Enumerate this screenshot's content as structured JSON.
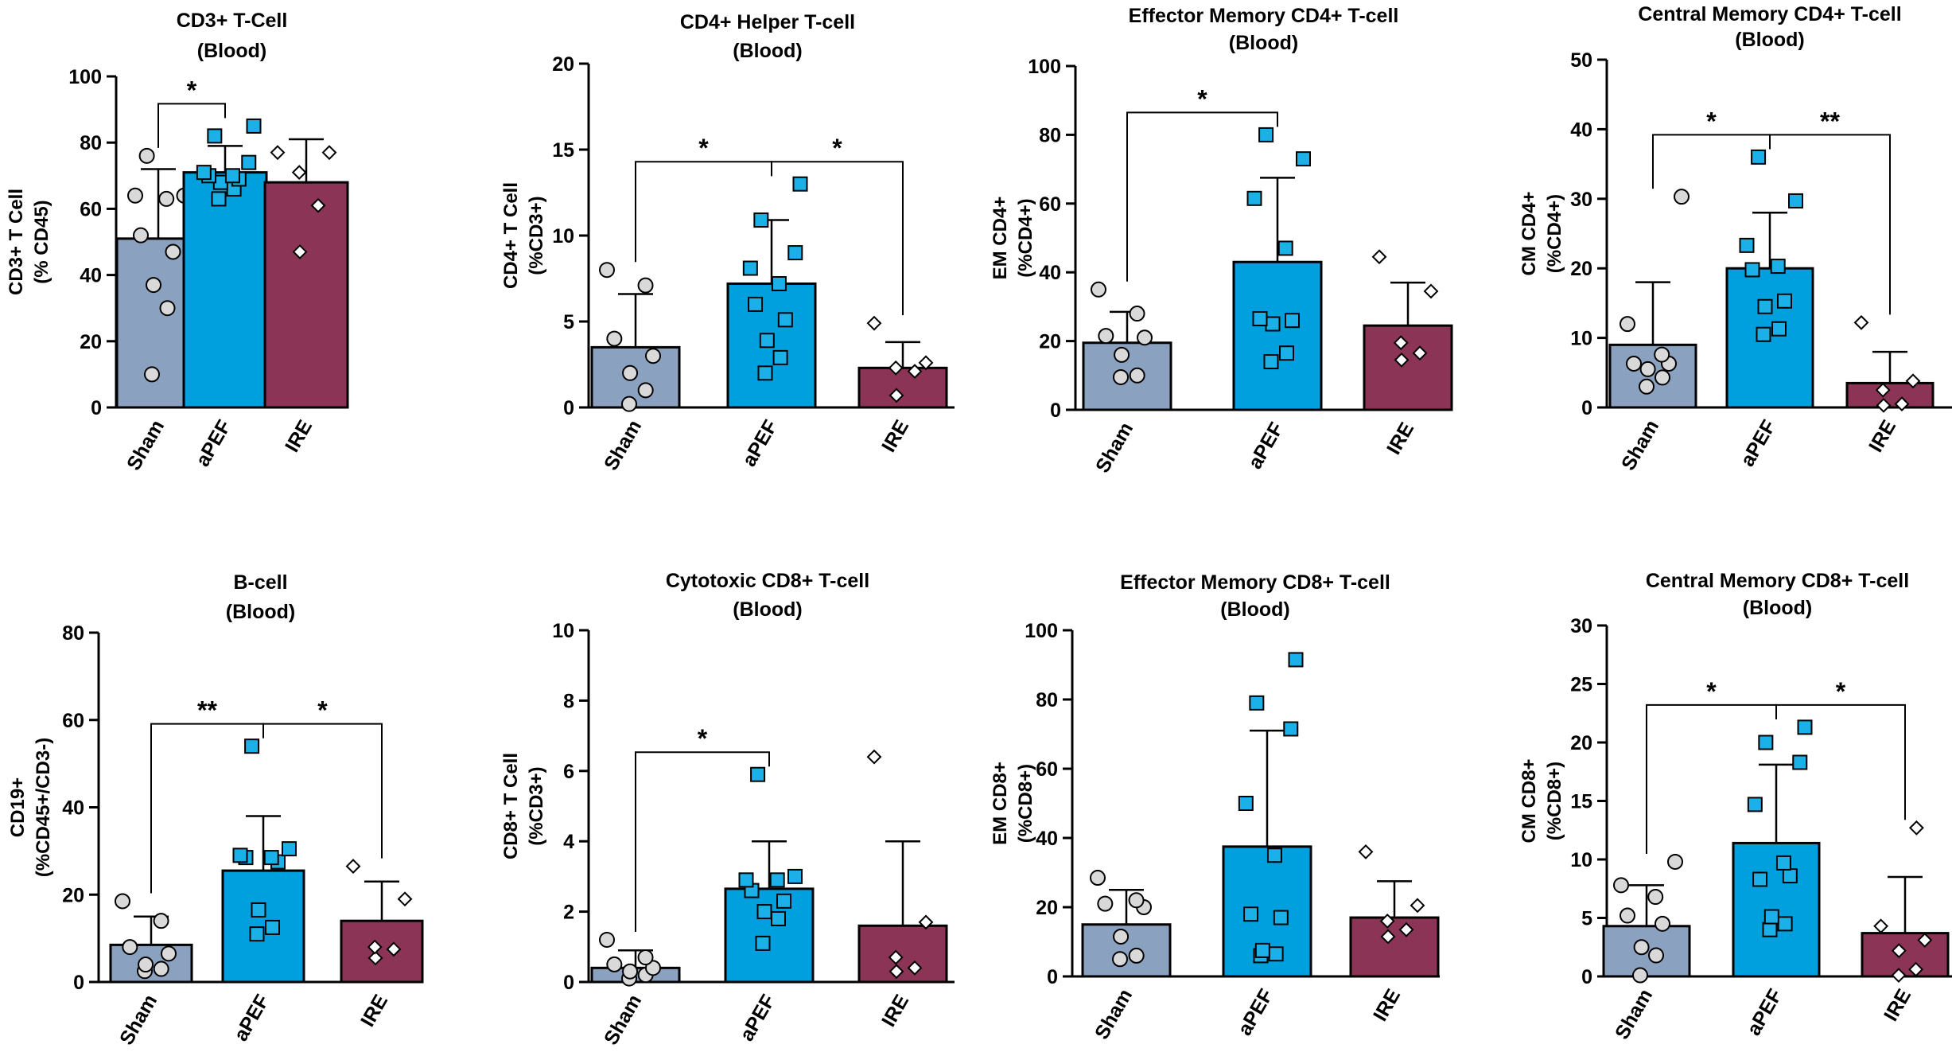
{
  "chart_data": [
    {
      "type": "bar",
      "title": "CD3+ T-Cell",
      "subtitle": "(Blood)",
      "ylabel_lines": [
        "CD3+ T Cell",
        "(% CD45)"
      ],
      "categories": [
        "Sham",
        "aPEF",
        "IRE"
      ],
      "ylim": [
        0,
        100
      ],
      "yticks": [
        0,
        20,
        40,
        60,
        80,
        100
      ],
      "series": [
        {
          "name": "Sham",
          "mean": 51,
          "error_upper": 72,
          "points": [
            10,
            30,
            37,
            47,
            52,
            63,
            64,
            64,
            76
          ]
        },
        {
          "name": "aPEF",
          "mean": 71,
          "error_upper": 79,
          "points": [
            63,
            66,
            68,
            69,
            70,
            70,
            71,
            74,
            82,
            85
          ]
        },
        {
          "name": "IRE",
          "mean": 68,
          "error_upper": 81,
          "points": [
            47,
            61,
            71,
            77,
            77
          ]
        }
      ],
      "significance": [
        {
          "from": 0,
          "to": 1,
          "label": "*"
        }
      ]
    },
    {
      "type": "bar",
      "title": "CD4+ Helper T-cell",
      "subtitle": "(Blood)",
      "ylabel_lines": [
        "CD4+ T Cell",
        "(%CD3+)"
      ],
      "categories": [
        "Sham",
        "aPEF",
        "IRE"
      ],
      "ylim": [
        0,
        20
      ],
      "yticks": [
        0,
        5,
        10,
        15,
        20
      ],
      "series": [
        {
          "name": "Sham",
          "mean": 3.5,
          "error_upper": 6.6,
          "points": [
            0.2,
            1.0,
            2.0,
            3.0,
            4.0,
            7.1,
            8.0
          ]
        },
        {
          "name": "aPEF",
          "mean": 7.2,
          "error_upper": 10.9,
          "points": [
            2.0,
            2.9,
            3.9,
            5.1,
            6.0,
            7.2,
            8.1,
            9.0,
            10.9,
            13.0
          ]
        },
        {
          "name": "IRE",
          "mean": 2.3,
          "error_upper": 3.8,
          "points": [
            0.7,
            2.1,
            2.3,
            2.6,
            4.9
          ]
        }
      ],
      "significance": [
        {
          "from": 0,
          "to": 1,
          "label": "*"
        },
        {
          "from": 1,
          "to": 2,
          "label": "*"
        }
      ]
    },
    {
      "type": "bar",
      "title": "Effector Memory CD4+ T-cell",
      "subtitle": "(Blood)",
      "ylabel_lines": [
        "EM CD4+",
        "(%CD4+)"
      ],
      "categories": [
        "Sham",
        "aPEF",
        "IRE"
      ],
      "ylim": [
        0,
        100
      ],
      "yticks": [
        0,
        20,
        40,
        60,
        80,
        100
      ],
      "series": [
        {
          "name": "Sham",
          "mean": 19.5,
          "error_upper": 28.5,
          "points": [
            9.5,
            10,
            16,
            21,
            21.5,
            28,
            35
          ]
        },
        {
          "name": "aPEF",
          "mean": 43,
          "error_upper": 67.5,
          "points": [
            14,
            16.5,
            25,
            26,
            26.5,
            47,
            61.5,
            73,
            80
          ]
        },
        {
          "name": "IRE",
          "mean": 24.5,
          "error_upper": 37,
          "points": [
            14.5,
            16.5,
            19.5,
            34.5,
            44.5
          ]
        }
      ],
      "significance": [
        {
          "from": 0,
          "to": 1,
          "label": "*"
        }
      ]
    },
    {
      "type": "bar",
      "title": "Central Memory CD4+ T-cell",
      "subtitle": "(Blood)",
      "ylabel_lines": [
        "CM CD4+",
        "(%CD4+)"
      ],
      "categories": [
        "Sham",
        "aPEF",
        "IRE"
      ],
      "ylim": [
        0,
        50
      ],
      "yticks": [
        0,
        10,
        20,
        30,
        40,
        50
      ],
      "series": [
        {
          "name": "Sham",
          "mean": 9,
          "error_upper": 18,
          "points": [
            3,
            4.3,
            5.5,
            6.3,
            6.3,
            7.6,
            12,
            30.3
          ]
        },
        {
          "name": "aPEF",
          "mean": 20,
          "error_upper": 28,
          "points": [
            10.5,
            11.3,
            14.5,
            15.3,
            19.8,
            20.3,
            23.3,
            29.7,
            36
          ]
        },
        {
          "name": "IRE",
          "mean": 3.5,
          "error_upper": 8,
          "points": [
            0.3,
            0.5,
            2.5,
            3.8,
            12.2
          ]
        }
      ],
      "significance": [
        {
          "from": 0,
          "to": 1,
          "label": "*"
        },
        {
          "from": 1,
          "to": 2,
          "label": "**"
        }
      ]
    },
    {
      "type": "bar",
      "title": "B-cell",
      "subtitle": "(Blood)",
      "ylabel_lines": [
        "CD19+",
        "(%CD45+/CD3-)"
      ],
      "categories": [
        "Sham",
        "aPEF",
        "IRE"
      ],
      "ylim": [
        0,
        80
      ],
      "yticks": [
        0,
        20,
        40,
        60,
        80
      ],
      "series": [
        {
          "name": "Sham",
          "mean": 8.5,
          "error_upper": 15,
          "points": [
            2.5,
            3,
            4,
            6.5,
            8,
            14,
            18.5
          ]
        },
        {
          "name": "aPEF",
          "mean": 25.5,
          "error_upper": 38,
          "points": [
            11,
            12.5,
            16.5,
            27.5,
            28.5,
            28.5,
            29,
            30.5,
            54
          ]
        },
        {
          "name": "IRE",
          "mean": 14,
          "error_upper": 23,
          "points": [
            5.5,
            7.5,
            8,
            19,
            26.5
          ]
        }
      ],
      "significance": [
        {
          "from": 0,
          "to": 1,
          "label": "**"
        },
        {
          "from": 1,
          "to": 2,
          "label": "*"
        }
      ]
    },
    {
      "type": "bar",
      "title": "Cytotoxic CD8+ T-cell",
      "subtitle": "(Blood)",
      "ylabel_lines": [
        "CD8+ T Cell",
        "(%CD3+)"
      ],
      "categories": [
        "Sham",
        "aPEF",
        "IRE"
      ],
      "ylim": [
        0,
        10
      ],
      "yticks": [
        0,
        2,
        4,
        6,
        8,
        10
      ],
      "series": [
        {
          "name": "Sham",
          "mean": 0.4,
          "error_upper": 0.9,
          "points": [
            0.1,
            0.2,
            0.3,
            0.4,
            0.5,
            0.7,
            1.2
          ]
        },
        {
          "name": "aPEF",
          "mean": 2.65,
          "error_upper": 4,
          "points": [
            1.1,
            1.8,
            2.0,
            2.3,
            2.6,
            2.9,
            2.9,
            3.0,
            5.9
          ]
        },
        {
          "name": "IRE",
          "mean": 1.6,
          "error_upper": 4.0,
          "points": [
            0.3,
            0.4,
            0.7,
            1.7,
            6.4
          ]
        }
      ],
      "significance": [
        {
          "from": 0,
          "to": 1,
          "label": "*"
        }
      ]
    },
    {
      "type": "bar",
      "title": "Effector Memory CD8+ T-cell",
      "subtitle": "(Blood)",
      "ylabel_lines": [
        "EM CD8+",
        "(%CD8+)"
      ],
      "categories": [
        "Sham",
        "aPEF",
        "IRE"
      ],
      "ylim": [
        0,
        100
      ],
      "yticks": [
        0,
        20,
        40,
        60,
        80,
        100
      ],
      "series": [
        {
          "name": "Sham",
          "mean": 15,
          "error_upper": 25,
          "points": [
            5,
            6,
            11.5,
            20,
            21,
            22,
            28.5
          ]
        },
        {
          "name": "aPEF",
          "mean": 37.5,
          "error_upper": 71,
          "points": [
            6,
            6.5,
            7.5,
            17,
            18,
            35,
            50,
            71.5,
            79,
            91.5
          ]
        },
        {
          "name": "IRE",
          "mean": 17,
          "error_upper": 27.5,
          "points": [
            11.5,
            13.5,
            16,
            20.5,
            36
          ]
        }
      ],
      "significance": []
    },
    {
      "type": "bar",
      "title": "Central Memory CD8+ T-cell",
      "subtitle": "(Blood)",
      "ylabel_lines": [
        "CM CD8+",
        "(%CD8+)"
      ],
      "categories": [
        "Sham",
        "aPEF",
        "IRE"
      ],
      "ylim": [
        0,
        30
      ],
      "yticks": [
        0,
        5,
        10,
        15,
        20,
        25,
        30
      ],
      "series": [
        {
          "name": "Sham",
          "mean": 4.3,
          "error_upper": 7.8,
          "points": [
            0.1,
            1.8,
            2.5,
            4.5,
            5.2,
            6.8,
            7.8,
            9.8
          ]
        },
        {
          "name": "aPEF",
          "mean": 11.4,
          "error_upper": 18.1,
          "points": [
            4,
            4.5,
            5.1,
            8.6,
            8.3,
            9.7,
            14.7,
            18.3,
            20,
            21.3
          ]
        },
        {
          "name": "IRE",
          "mean": 3.7,
          "error_upper": 8.5,
          "points": [
            0.1,
            0.6,
            2.2,
            3.1,
            4.3,
            12.7
          ]
        }
      ],
      "significance": [
        {
          "from": 0,
          "to": 1,
          "label": "*"
        },
        {
          "from": 1,
          "to": 2,
          "label": "*"
        }
      ]
    }
  ],
  "colors": {
    "sham_bar": "#8aa1c0",
    "apef_bar": "#00a0df",
    "ire_bar": "#8b3456",
    "sham_marker": "#d9d9d9",
    "apef_marker": "#1bb0e8",
    "ire_marker": "#ffffff",
    "line": "#000000"
  },
  "marker_shapes": [
    "circle",
    "square",
    "diamond"
  ]
}
